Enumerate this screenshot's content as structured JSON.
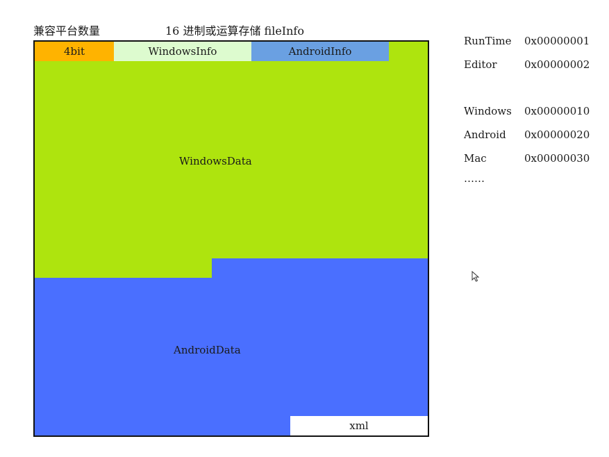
{
  "header": {
    "left_label": "兼容平台数量",
    "right_label": "16 进制或运算存储 fileInfo"
  },
  "diagram": {
    "header_segments": [
      {
        "label": "4bit",
        "color": "#FFB300"
      },
      {
        "label": "WindowsInfo",
        "color": "#DDFBCF"
      },
      {
        "label": "AndroidInfo",
        "color": "#6AA0E2"
      }
    ],
    "windows_data": {
      "label": "WindowsData",
      "color": "#AEE40E"
    },
    "android_data": {
      "label": "AndroidData",
      "color": "#4A6FFF"
    },
    "xml_block": {
      "label": "xml",
      "color": "#FFFFFF"
    }
  },
  "legend": [
    {
      "name": "RunTime",
      "code": "0x00000001"
    },
    {
      "name": "Editor",
      "code": "0x00000002"
    },
    {
      "name": "Windows",
      "code": "0x00000010"
    },
    {
      "name": "Android",
      "code": "0x00000020"
    },
    {
      "name": "Mac",
      "code": "0x00000030"
    }
  ],
  "legend_more": "……"
}
